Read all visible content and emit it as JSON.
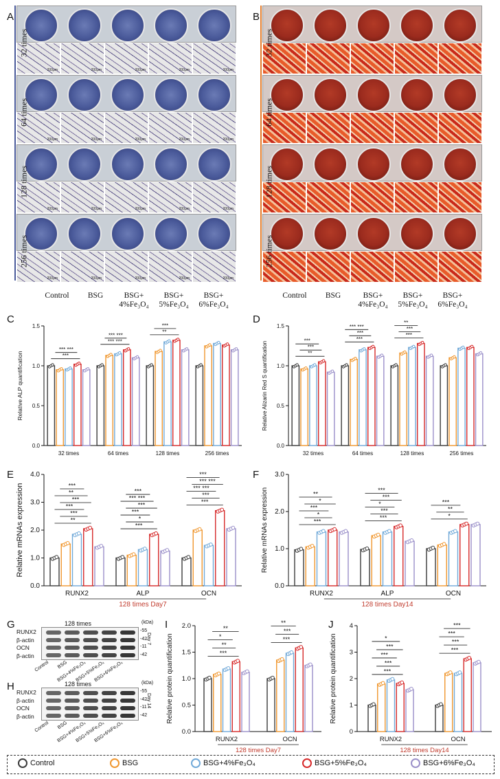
{
  "panel_letters": [
    "A",
    "B",
    "C",
    "D",
    "E",
    "F",
    "G",
    "H",
    "I",
    "J"
  ],
  "staining_rows": [
    "32 times",
    "64 times",
    "128 times",
    "256 times"
  ],
  "group_labels": {
    "control": "Control",
    "bsg": "BSG",
    "bsg4_line1": "BSG+",
    "bsg4_line2": "4%Fe₃O₄",
    "bsg5_line1": "BSG+",
    "bsg5_line2": "5%Fe₃O₄",
    "bsg6_line1": "BSG+",
    "bsg6_line2": "6%Fe₃O₄"
  },
  "scale_bar": "200μm",
  "colors": {
    "Control": "#3a3a3a",
    "BSG": "#f0962d",
    "BSG+4%Fe3O4": "#6fa8d8",
    "BSG+5%Fe3O4": "#d62728",
    "BSG+6%Fe3O4": "#9a8fc9",
    "alp_stain": "#4a5a9a",
    "ars_stain": "#9b2b1e"
  },
  "legend": {
    "items": [
      "Control",
      "BSG",
      "BSG+4%Fe₃O₄",
      "BSG+5%Fe₃O₄",
      "BSG+6%Fe₃O₄"
    ]
  },
  "western": {
    "G": {
      "title": "128 times",
      "kda": "(kDa)",
      "day": "Day 7",
      "rows": [
        "RUNX2",
        "β-actin",
        "OCN",
        "β-actin"
      ],
      "sizes": [
        "55",
        "42",
        "11",
        "42"
      ],
      "lanes": [
        "Control",
        "BSG",
        "BSG+4%Fe₃O₄",
        "BSG+5%Fe₃O₄",
        "BSG+6%Fe₃O₄"
      ]
    },
    "H": {
      "title": "128 times",
      "kda": "(kDa)",
      "day": "Day 14",
      "rows": [
        "RUNX2",
        "β-actin",
        "OCN",
        "β-actin"
      ],
      "sizes": [
        "55",
        "42",
        "11",
        "42"
      ],
      "lanes": [
        "Control",
        "BSG",
        "BSG+4%Fe₃O₄",
        "BSG+5%Fe₃O₄",
        "BSG+6%Fe₃O₄"
      ]
    }
  },
  "chart_data": [
    {
      "id": "C",
      "type": "bar",
      "ylabel": "Relative ALP quantification",
      "ylim": [
        0,
        1.5
      ],
      "yticks": [
        "0.0",
        "0.5",
        "1.0",
        "1.5"
      ],
      "categories": [
        "32 times",
        "64 times",
        "128 times",
        "256 times"
      ],
      "series": [
        {
          "name": "Control",
          "values": [
            1.0,
            1.0,
            1.0,
            1.0
          ]
        },
        {
          "name": "BSG",
          "values": [
            0.95,
            1.13,
            1.18,
            1.25
          ]
        },
        {
          "name": "BSG+4%Fe3O4",
          "values": [
            0.96,
            1.15,
            1.3,
            1.28
          ]
        },
        {
          "name": "BSG+5%Fe3O4",
          "values": [
            1.02,
            1.2,
            1.32,
            1.26
          ]
        },
        {
          "name": "BSG+6%Fe3O4",
          "values": [
            0.95,
            1.1,
            1.2,
            1.2
          ]
        }
      ],
      "sig_labels": [
        "***",
        "*** ***",
        "*** ***",
        "*** ***",
        "**",
        "***"
      ]
    },
    {
      "id": "D",
      "type": "bar",
      "ylabel": "Relative Alizarin Red S quantification",
      "ylim": [
        0,
        1.5
      ],
      "yticks": [
        "0.0",
        "0.5",
        "1.0",
        "1.5"
      ],
      "categories": [
        "32 times",
        "64 times",
        "128 times",
        "256 times"
      ],
      "series": [
        {
          "name": "Control",
          "values": [
            1.0,
            1.0,
            1.0,
            1.0
          ]
        },
        {
          "name": "BSG",
          "values": [
            0.96,
            1.08,
            1.16,
            1.1
          ]
        },
        {
          "name": "BSG+4%Fe3O4",
          "values": [
            1.0,
            1.2,
            1.23,
            1.22
          ]
        },
        {
          "name": "BSG+5%Fe3O4",
          "values": [
            1.05,
            1.23,
            1.28,
            1.23
          ]
        },
        {
          "name": "BSG+6%Fe3O4",
          "values": [
            0.92,
            1.12,
            1.12,
            1.15
          ]
        }
      ],
      "sig_labels": [
        "**",
        "***",
        "***",
        "***",
        "***",
        "*** ***",
        "***",
        "***",
        "**"
      ]
    },
    {
      "id": "E",
      "type": "bar",
      "ylabel": "Relative mRNAs expression",
      "ylim": [
        0,
        4
      ],
      "yticks": [
        "0.0",
        "1.0",
        "2.0",
        "3.0",
        "4.0"
      ],
      "categories": [
        "RUNX2",
        "ALP",
        "OCN"
      ],
      "subtitle": "128 times   Day7",
      "series": [
        {
          "name": "Control",
          "values": [
            1.0,
            1.0,
            1.0
          ]
        },
        {
          "name": "BSG",
          "values": [
            1.5,
            1.1,
            2.0
          ]
        },
        {
          "name": "BSG+4%Fe3O4",
          "values": [
            1.85,
            1.3,
            1.45
          ]
        },
        {
          "name": "BSG+5%Fe3O4",
          "values": [
            2.05,
            1.85,
            2.7
          ]
        },
        {
          "name": "BSG+6%Fe3O4",
          "values": [
            1.4,
            1.25,
            2.05
          ]
        }
      ],
      "sig_labels": [
        "**",
        "***",
        "***",
        "***",
        "**",
        "***",
        "***",
        "*",
        "***",
        "***",
        "*** ***",
        "***",
        "***",
        "***",
        "*** ***",
        "*** ***",
        "***"
      ]
    },
    {
      "id": "F",
      "type": "bar",
      "ylabel": "Relative mRNAs expression",
      "ylim": [
        0,
        3
      ],
      "yticks": [
        "0.0",
        "1.0",
        "2.0",
        "3.0"
      ],
      "categories": [
        "RUNX2",
        "ALP",
        "OCN"
      ],
      "subtitle": "128 times   Day14",
      "series": [
        {
          "name": "Control",
          "values": [
            0.97,
            0.98,
            1.0
          ]
        },
        {
          "name": "BSG",
          "values": [
            1.05,
            1.35,
            1.1
          ]
        },
        {
          "name": "BSG+4%Fe3O4",
          "values": [
            1.45,
            1.45,
            1.45
          ]
        },
        {
          "name": "BSG+5%Fe3O4",
          "values": [
            1.5,
            1.6,
            1.65
          ]
        },
        {
          "name": "BSG+6%Fe3O4",
          "values": [
            1.45,
            1.2,
            1.65
          ]
        }
      ],
      "sig_labels": [
        "***",
        "*",
        "***",
        "*",
        "**",
        "***",
        "***",
        "*",
        "***",
        "***",
        "*",
        "**",
        "***"
      ]
    },
    {
      "id": "I",
      "type": "bar",
      "ylabel": "Relative protein quantification",
      "ylim": [
        0,
        2
      ],
      "yticks": [
        "0.0",
        "0.5",
        "1.0",
        "1.5",
        "2.0"
      ],
      "categories": [
        "RUNX2",
        "OCN"
      ],
      "subtitle": "128 times   Day7",
      "series": [
        {
          "name": "Control",
          "values": [
            1.0,
            1.0
          ]
        },
        {
          "name": "BSG",
          "values": [
            1.08,
            1.35
          ]
        },
        {
          "name": "BSG+4%Fe3O4",
          "values": [
            1.18,
            1.48
          ]
        },
        {
          "name": "BSG+5%Fe3O4",
          "values": [
            1.32,
            1.58
          ]
        },
        {
          "name": "BSG+6%Fe3O4",
          "values": [
            1.12,
            1.25
          ]
        }
      ],
      "sig_labels": [
        "***",
        "**",
        "*",
        "**",
        "***",
        "***",
        "**",
        "***"
      ]
    },
    {
      "id": "J",
      "type": "bar",
      "ylabel": "Relative protein quantification",
      "ylim": [
        0,
        4
      ],
      "yticks": [
        "0",
        "1",
        "2",
        "3",
        "4"
      ],
      "categories": [
        "RUNX2",
        "OCN"
      ],
      "subtitle": "128 times   Day14",
      "series": [
        {
          "name": "Control",
          "values": [
            1.0,
            1.0
          ]
        },
        {
          "name": "BSG",
          "values": [
            1.8,
            2.2
          ]
        },
        {
          "name": "BSG+4%Fe3O4",
          "values": [
            1.95,
            2.2
          ]
        },
        {
          "name": "BSG+5%Fe3O4",
          "values": [
            1.82,
            2.75
          ]
        },
        {
          "name": "BSG+6%Fe3O4",
          "values": [
            1.58,
            2.6
          ]
        }
      ],
      "sig_labels": [
        "***",
        "***",
        "***",
        "***",
        "*",
        "***",
        "***",
        "***",
        "***"
      ]
    }
  ]
}
